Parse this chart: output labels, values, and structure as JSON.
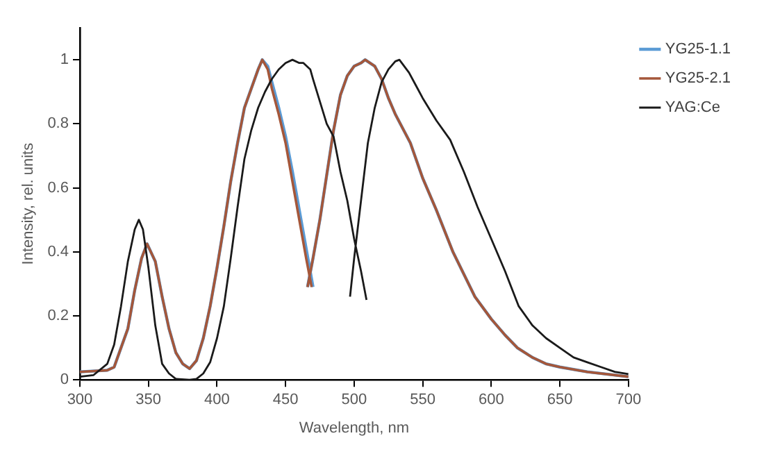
{
  "chart_data": {
    "type": "line",
    "xlabel": "Wavelength, nm",
    "ylabel": "Intensity, rel. units",
    "xlim": [
      300,
      700
    ],
    "xticks": [
      300,
      350,
      400,
      450,
      500,
      550,
      600,
      650,
      700
    ],
    "ylim": [
      0,
      1.1
    ],
    "yticks": [
      0,
      0.2,
      0.4,
      0.6,
      0.8,
      1
    ],
    "grid": false,
    "legend": "right",
    "marker": "none",
    "line_style": "solid",
    "series": [
      {
        "name": "YG25-1.1",
        "color": "#5b9bd5",
        "x": [
          300,
          320,
          325,
          335,
          340,
          345,
          349,
          355,
          360,
          365,
          370,
          375,
          380,
          385,
          390,
          395,
          400,
          405,
          410,
          415,
          420,
          425,
          430,
          433,
          437,
          440,
          445,
          450,
          455,
          460,
          465,
          470,
          null,
          466,
          470,
          475,
          480,
          485,
          490,
          495,
          500,
          505,
          508,
          515,
          520,
          525,
          530,
          541,
          550,
          560,
          572,
          588,
          600,
          610,
          619,
          630,
          640,
          650,
          670,
          700
        ],
        "values": [
          0.025,
          0.03,
          0.04,
          0.16,
          0.28,
          0.38,
          0.425,
          0.37,
          0.26,
          0.16,
          0.085,
          0.05,
          0.035,
          0.06,
          0.13,
          0.23,
          0.35,
          0.48,
          0.62,
          0.74,
          0.85,
          0.91,
          0.97,
          1.0,
          0.98,
          0.93,
          0.85,
          0.76,
          0.65,
          0.53,
          0.41,
          0.29,
          null,
          0.29,
          0.38,
          0.5,
          0.64,
          0.78,
          0.89,
          0.95,
          0.98,
          0.99,
          1.0,
          0.98,
          0.94,
          0.88,
          0.83,
          0.74,
          0.63,
          0.53,
          0.4,
          0.26,
          0.19,
          0.14,
          0.1,
          0.07,
          0.05,
          0.04,
          0.025,
          0.01
        ]
      },
      {
        "name": "YG25-2.1",
        "color": "#a5573a",
        "x": [
          300,
          320,
          325,
          335,
          340,
          345,
          349,
          355,
          360,
          365,
          370,
          375,
          380,
          385,
          390,
          395,
          400,
          405,
          410,
          415,
          420,
          425,
          430,
          433,
          437,
          440,
          445,
          450,
          455,
          460,
          465,
          469,
          null,
          466,
          470,
          475,
          480,
          485,
          490,
          495,
          500,
          505,
          508,
          515,
          520,
          525,
          530,
          541,
          550,
          560,
          572,
          588,
          600,
          610,
          619,
          630,
          640,
          650,
          670,
          700
        ],
        "values": [
          0.025,
          0.03,
          0.04,
          0.16,
          0.28,
          0.38,
          0.425,
          0.37,
          0.26,
          0.16,
          0.085,
          0.05,
          0.035,
          0.06,
          0.13,
          0.23,
          0.35,
          0.48,
          0.62,
          0.74,
          0.85,
          0.91,
          0.97,
          1.0,
          0.97,
          0.91,
          0.83,
          0.74,
          0.62,
          0.5,
          0.38,
          0.29,
          null,
          0.29,
          0.38,
          0.5,
          0.64,
          0.78,
          0.89,
          0.95,
          0.98,
          0.99,
          1.0,
          0.98,
          0.94,
          0.88,
          0.83,
          0.74,
          0.63,
          0.53,
          0.4,
          0.26,
          0.19,
          0.14,
          0.1,
          0.07,
          0.05,
          0.04,
          0.025,
          0.01
        ]
      },
      {
        "name": "YAG:Ce",
        "color": "#1a1a1a",
        "x": [
          300,
          310,
          320,
          325,
          330,
          335,
          340,
          343,
          346,
          350,
          355,
          360,
          365,
          370,
          380,
          385,
          390,
          395,
          400,
          405,
          410,
          415,
          420,
          425,
          430,
          435,
          440,
          445,
          450,
          455,
          460,
          463,
          468,
          470,
          475,
          480,
          485,
          490,
          495,
          500,
          505,
          509,
          null,
          497,
          500,
          505,
          510,
          515,
          520,
          525,
          530,
          533,
          540,
          545,
          550,
          560,
          570,
          580,
          590,
          600,
          610,
          620,
          630,
          640,
          650,
          660,
          670,
          680,
          690,
          700
        ],
        "values": [
          0.01,
          0.015,
          0.05,
          0.11,
          0.23,
          0.37,
          0.47,
          0.5,
          0.47,
          0.35,
          0.17,
          0.05,
          0.02,
          0.003,
          0,
          0.003,
          0.02,
          0.055,
          0.13,
          0.23,
          0.38,
          0.54,
          0.69,
          0.78,
          0.85,
          0.9,
          0.94,
          0.97,
          0.99,
          1.0,
          0.99,
          0.99,
          0.97,
          0.94,
          0.87,
          0.8,
          0.76,
          0.65,
          0.56,
          0.44,
          0.34,
          0.25,
          null,
          0.26,
          0.38,
          0.56,
          0.74,
          0.85,
          0.93,
          0.97,
          0.995,
          1.0,
          0.96,
          0.92,
          0.88,
          0.81,
          0.75,
          0.65,
          0.54,
          0.44,
          0.34,
          0.23,
          0.17,
          0.13,
          0.1,
          0.07,
          0.055,
          0.04,
          0.025,
          0.018
        ]
      }
    ]
  }
}
